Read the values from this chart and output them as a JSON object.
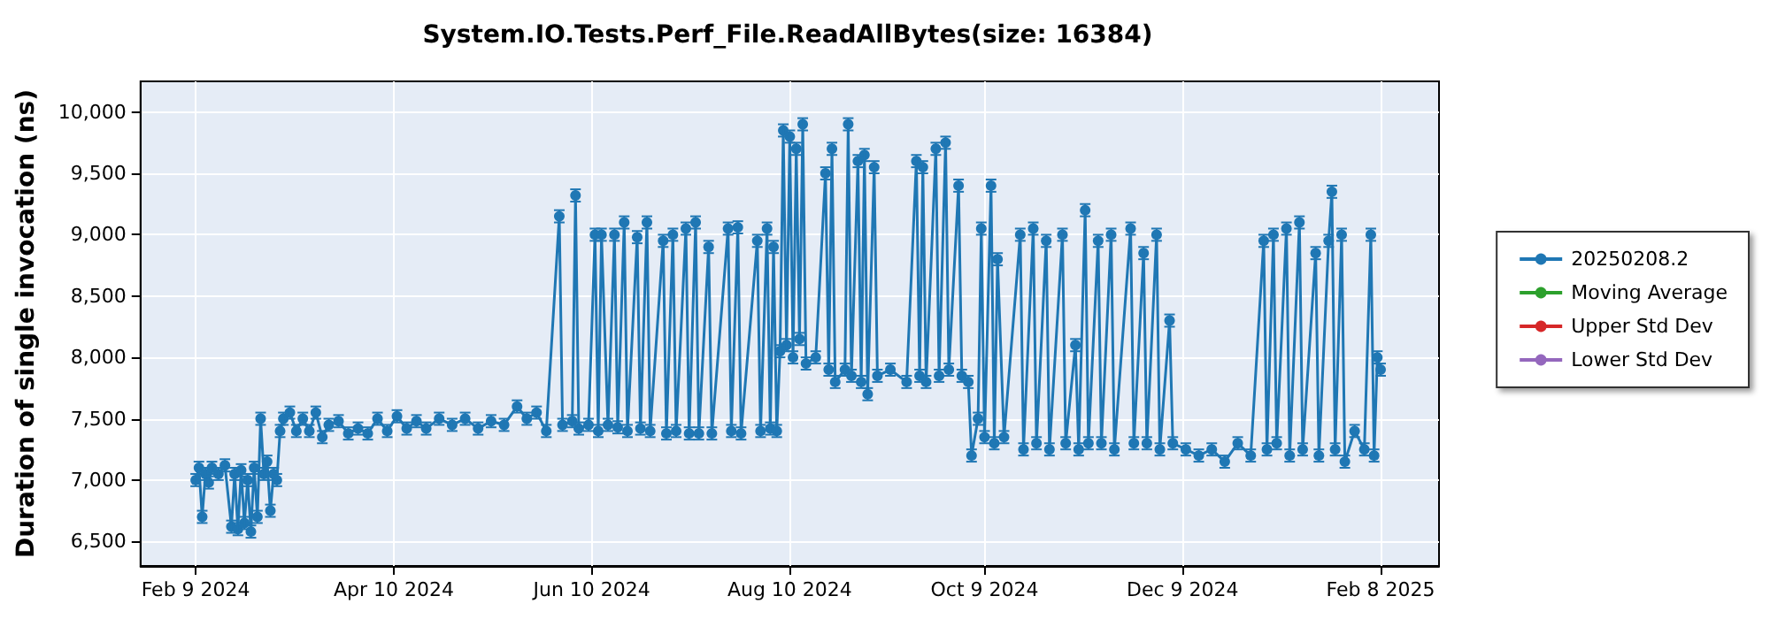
{
  "chart_data": {
    "type": "line",
    "title": "System.IO.Tests.Perf_File.ReadAllBytes(size: 16384)",
    "ylabel": "Duration of single invocation (ns)",
    "xlim": [
      "2024-01-23",
      "2025-02-26"
    ],
    "xticks": [
      {
        "value": "2024-02-09",
        "label": "Feb 9 2024"
      },
      {
        "value": "2024-04-10",
        "label": "Apr 10 2024"
      },
      {
        "value": "2024-06-10",
        "label": "Jun 10 2024"
      },
      {
        "value": "2024-08-10",
        "label": "Aug 10 2024"
      },
      {
        "value": "2024-10-09",
        "label": "Oct 9 2024"
      },
      {
        "value": "2024-12-09",
        "label": "Dec 9 2024"
      },
      {
        "value": "2025-02-08",
        "label": "Feb 8 2025"
      }
    ],
    "ylim": [
      6300,
      10250
    ],
    "yticks": [
      {
        "value": 6500,
        "label": "6,500"
      },
      {
        "value": 7000,
        "label": "7,000"
      },
      {
        "value": 7500,
        "label": "7,500"
      },
      {
        "value": 8000,
        "label": "8,000"
      },
      {
        "value": 8500,
        "label": "8,500"
      },
      {
        "value": 9000,
        "label": "9,000"
      },
      {
        "value": 9500,
        "label": "9,500"
      },
      {
        "value": 10000,
        "label": "10,000"
      }
    ],
    "grid": true,
    "legend": "right",
    "marker": "circle",
    "line_style": "solid",
    "x": [
      "2024-02-09",
      "2024-02-10",
      "2024-02-11",
      "2024-02-12",
      "2024-02-13",
      "2024-02-14",
      "2024-02-16",
      "2024-02-18",
      "2024-02-20",
      "2024-02-21",
      "2024-02-22",
      "2024-02-23",
      "2024-02-24",
      "2024-02-25",
      "2024-02-26",
      "2024-02-27",
      "2024-02-28",
      "2024-02-29",
      "2024-03-01",
      "2024-03-02",
      "2024-03-03",
      "2024-03-04",
      "2024-03-05",
      "2024-03-06",
      "2024-03-07",
      "2024-03-09",
      "2024-03-11",
      "2024-03-13",
      "2024-03-15",
      "2024-03-17",
      "2024-03-19",
      "2024-03-21",
      "2024-03-24",
      "2024-03-27",
      "2024-03-30",
      "2024-04-02",
      "2024-04-05",
      "2024-04-08",
      "2024-04-11",
      "2024-04-14",
      "2024-04-17",
      "2024-04-20",
      "2024-04-24",
      "2024-04-28",
      "2024-05-02",
      "2024-05-06",
      "2024-05-10",
      "2024-05-14",
      "2024-05-18",
      "2024-05-21",
      "2024-05-24",
      "2024-05-27",
      "2024-05-31",
      "2024-06-01",
      "2024-06-04",
      "2024-06-05",
      "2024-06-06",
      "2024-06-09",
      "2024-06-11",
      "2024-06-12",
      "2024-06-13",
      "2024-06-15",
      "2024-06-17",
      "2024-06-18",
      "2024-06-20",
      "2024-06-21",
      "2024-06-24",
      "2024-06-25",
      "2024-06-27",
      "2024-06-28",
      "2024-07-02",
      "2024-07-03",
      "2024-07-05",
      "2024-07-06",
      "2024-07-09",
      "2024-07-10",
      "2024-07-12",
      "2024-07-13",
      "2024-07-16",
      "2024-07-17",
      "2024-07-22",
      "2024-07-23",
      "2024-07-25",
      "2024-07-26",
      "2024-07-31",
      "2024-08-01",
      "2024-08-03",
      "2024-08-04",
      "2024-08-05",
      "2024-08-06",
      "2024-08-07",
      "2024-08-08",
      "2024-08-09",
      "2024-08-10",
      "2024-08-11",
      "2024-08-12",
      "2024-08-13",
      "2024-08-14",
      "2024-08-15",
      "2024-08-18",
      "2024-08-21",
      "2024-08-22",
      "2024-08-23",
      "2024-08-24",
      "2024-08-27",
      "2024-08-28",
      "2024-08-29",
      "2024-08-31",
      "2024-09-01",
      "2024-09-02",
      "2024-09-03",
      "2024-09-05",
      "2024-09-06",
      "2024-09-10",
      "2024-09-15",
      "2024-09-18",
      "2024-09-19",
      "2024-09-20",
      "2024-09-21",
      "2024-09-24",
      "2024-09-25",
      "2024-09-27",
      "2024-09-28",
      "2024-10-01",
      "2024-10-02",
      "2024-10-04",
      "2024-10-05",
      "2024-10-07",
      "2024-10-08",
      "2024-10-09",
      "2024-10-11",
      "2024-10-12",
      "2024-10-13",
      "2024-10-15",
      "2024-10-20",
      "2024-10-21",
      "2024-10-24",
      "2024-10-25",
      "2024-10-28",
      "2024-10-29",
      "2024-11-02",
      "2024-11-03",
      "2024-11-06",
      "2024-11-07",
      "2024-11-09",
      "2024-11-10",
      "2024-11-13",
      "2024-11-14",
      "2024-11-17",
      "2024-11-18",
      "2024-11-23",
      "2024-11-24",
      "2024-11-27",
      "2024-11-28",
      "2024-12-01",
      "2024-12-02",
      "2024-12-05",
      "2024-12-06",
      "2024-12-10",
      "2024-12-14",
      "2024-12-18",
      "2024-12-22",
      "2024-12-26",
      "2024-12-30",
      "2025-01-03",
      "2025-01-04",
      "2025-01-06",
      "2025-01-07",
      "2025-01-10",
      "2025-01-11",
      "2025-01-14",
      "2025-01-15",
      "2025-01-19",
      "2025-01-20",
      "2025-01-23",
      "2025-01-24",
      "2025-01-25",
      "2025-01-27",
      "2025-01-28",
      "2025-01-31",
      "2025-02-03",
      "2025-02-05",
      "2025-02-06",
      "2025-02-07",
      "2025-02-08"
    ],
    "series": [
      {
        "name": "20250208.2",
        "color": "#1f77b4",
        "values": [
          7000,
          7100,
          6700,
          7050,
          6980,
          7100,
          7050,
          7120,
          6620,
          7050,
          6600,
          7080,
          6650,
          7000,
          6580,
          7100,
          6700,
          7500,
          7050,
          7150,
          6750,
          7050,
          7000,
          7400,
          7500,
          7550,
          7400,
          7500,
          7400,
          7550,
          7350,
          7450,
          7480,
          7380,
          7420,
          7380,
          7500,
          7400,
          7520,
          7420,
          7480,
          7420,
          7500,
          7450,
          7500,
          7420,
          7480,
          7450,
          7600,
          7500,
          7550,
          7400,
          9150,
          7450,
          7480,
          9320,
          7420,
          7450,
          9000,
          7400,
          9000,
          7450,
          9000,
          7430,
          9100,
          7400,
          8980,
          7420,
          9100,
          7400,
          8950,
          7380,
          9000,
          7400,
          9050,
          7380,
          9100,
          7380,
          8900,
          7380,
          9050,
          7400,
          9060,
          7380,
          8950,
          7400,
          9050,
          7420,
          8900,
          7400,
          8050,
          9850,
          8100,
          9800,
          8000,
          9700,
          8150,
          9900,
          7950,
          8000,
          9500,
          7900,
          9700,
          7800,
          7900,
          9900,
          7850,
          9600,
          7800,
          9650,
          7700,
          9550,
          7850,
          7900,
          7800,
          9600,
          7850,
          9550,
          7800,
          9700,
          7850,
          9750,
          7900,
          9400,
          7850,
          7800,
          7200,
          7500,
          9050,
          7350,
          9400,
          7300,
          8800,
          7350,
          9000,
          7250,
          9050,
          7300,
          8950,
          7250,
          9000,
          7300,
          8100,
          7250,
          9200,
          7300,
          8950,
          7300,
          9000,
          7250,
          9050,
          7300,
          8850,
          7300,
          9000,
          7250,
          8300,
          7300,
          7250,
          7200,
          7250,
          7150,
          7300,
          7200,
          8950,
          7250,
          9000,
          7300,
          9050,
          7200,
          9100,
          7250,
          8850,
          7200,
          8950,
          9350,
          7250,
          9000,
          7150,
          7400,
          7250,
          9000,
          7200,
          8000,
          7900
        ],
        "errors": [
          50,
          50,
          50,
          50,
          50,
          50,
          50,
          50,
          50,
          50,
          50,
          50,
          50,
          50,
          50,
          50,
          50,
          50,
          50,
          50,
          50,
          50,
          50,
          50,
          50,
          50,
          50,
          50,
          50,
          50,
          50,
          50,
          50,
          50,
          50,
          50,
          50,
          50,
          50,
          50,
          50,
          50,
          50,
          50,
          50,
          50,
          50,
          50,
          50,
          50,
          50,
          50,
          50,
          50,
          50,
          50,
          50,
          50,
          50,
          50,
          50,
          50,
          50,
          50,
          50,
          50,
          50,
          50,
          50,
          50,
          50,
          50,
          50,
          50,
          50,
          50,
          50,
          50,
          50,
          50,
          50,
          50,
          50,
          50,
          50,
          50,
          50,
          50,
          50,
          50,
          50,
          50,
          50,
          50,
          50,
          50,
          50,
          50,
          50,
          50,
          50,
          50,
          50,
          50,
          50,
          50,
          50,
          50,
          50,
          50,
          50,
          50,
          50,
          50,
          50,
          50,
          50,
          50,
          50,
          50,
          50,
          50,
          50,
          50,
          50,
          50,
          50,
          50,
          50,
          50,
          50,
          50,
          50,
          50,
          50,
          50,
          50,
          50,
          50,
          50,
          50,
          50,
          50,
          50,
          50,
          50,
          50,
          50,
          50,
          50,
          50,
          50,
          50,
          50,
          50,
          50,
          50,
          50,
          50,
          50,
          50,
          50,
          50,
          50,
          50,
          50,
          50,
          50,
          50,
          50,
          50,
          50,
          50,
          50,
          50,
          50,
          50,
          50,
          50,
          50,
          50,
          50,
          50,
          50,
          50
        ]
      },
      {
        "name": "Moving Average",
        "color": "#2ca02c",
        "values": [
          null,
          null,
          null,
          null,
          null,
          null,
          null,
          null,
          null,
          null,
          null,
          null,
          null,
          null,
          null,
          null,
          null,
          null,
          null,
          null,
          null,
          null,
          null,
          null,
          null,
          null,
          null,
          null,
          null,
          null,
          null,
          null,
          null,
          null,
          null,
          null,
          null,
          null,
          null,
          null,
          null,
          null,
          null,
          null,
          null,
          null,
          null,
          null,
          null,
          null,
          null,
          null,
          null,
          null,
          null,
          null,
          null,
          null,
          null,
          null,
          null,
          null,
          null,
          null,
          null,
          null,
          null,
          null,
          null,
          null,
          null,
          null,
          null,
          null,
          null,
          null,
          null,
          null,
          null,
          null,
          null,
          null,
          null,
          null,
          null,
          null,
          null,
          null,
          null,
          null,
          null,
          null,
          null,
          null,
          null,
          null,
          null,
          null,
          null,
          null,
          null,
          null,
          null,
          null,
          null,
          null,
          null,
          null,
          null,
          null,
          null,
          null,
          null,
          null,
          null,
          null,
          null,
          null,
          null,
          null,
          null,
          null,
          null,
          null,
          null,
          null,
          null,
          null,
          null,
          null,
          null,
          null,
          null,
          null,
          null,
          null,
          null,
          null,
          null,
          null,
          null,
          null,
          null,
          null,
          null,
          null,
          null,
          null,
          null,
          null,
          null,
          null,
          null,
          null,
          null,
          null,
          null,
          null,
          null,
          null,
          null,
          null,
          null,
          null,
          null,
          null,
          null,
          null,
          null,
          null,
          null,
          null,
          null,
          null,
          null,
          null,
          null,
          null,
          null,
          null,
          null,
          null,
          null,
          null,
          null
        ]
      },
      {
        "name": "Upper Std Dev",
        "color": "#d62728",
        "values": [
          null,
          null,
          null,
          null,
          null,
          null,
          null,
          null,
          null,
          null,
          null,
          null,
          null,
          null,
          null,
          null,
          null,
          null,
          null,
          null,
          null,
          null,
          null,
          null,
          null,
          null,
          null,
          null,
          null,
          null,
          null,
          null,
          null,
          null,
          null,
          null,
          null,
          null,
          null,
          null,
          null,
          null,
          null,
          null,
          null,
          null,
          null,
          null,
          null,
          null,
          null,
          null,
          null,
          null,
          null,
          null,
          null,
          null,
          null,
          null,
          null,
          null,
          null,
          null,
          null,
          null,
          null,
          null,
          null,
          null,
          null,
          null,
          null,
          null,
          null,
          null,
          null,
          null,
          null,
          null,
          null,
          null,
          null,
          null,
          null,
          null,
          null,
          null,
          null,
          null,
          null,
          null,
          null,
          null,
          null,
          null,
          null,
          null,
          null,
          null,
          null,
          null,
          null,
          null,
          null,
          null,
          null,
          null,
          null,
          null,
          null,
          null,
          null,
          null,
          null,
          null,
          null,
          null,
          null,
          null,
          null,
          null,
          null,
          null,
          null,
          null,
          null,
          null,
          null,
          null,
          null,
          null,
          null,
          null,
          null,
          null,
          null,
          null,
          null,
          null,
          null,
          null,
          null,
          null,
          null,
          null,
          null,
          null,
          null,
          null,
          null,
          null,
          null,
          null,
          null,
          null,
          null,
          null,
          null,
          null,
          null,
          null,
          null,
          null,
          null,
          null,
          null,
          null,
          null,
          null,
          null,
          null,
          null,
          null,
          null,
          null,
          null,
          null,
          null,
          null,
          null,
          null,
          null,
          null,
          null
        ]
      },
      {
        "name": "Lower Std Dev",
        "color": "#9467bd",
        "values": [
          null,
          null,
          null,
          null,
          null,
          null,
          null,
          null,
          null,
          null,
          null,
          null,
          null,
          null,
          null,
          null,
          null,
          null,
          null,
          null,
          null,
          null,
          null,
          null,
          null,
          null,
          null,
          null,
          null,
          null,
          null,
          null,
          null,
          null,
          null,
          null,
          null,
          null,
          null,
          null,
          null,
          null,
          null,
          null,
          null,
          null,
          null,
          null,
          null,
          null,
          null,
          null,
          null,
          null,
          null,
          null,
          null,
          null,
          null,
          null,
          null,
          null,
          null,
          null,
          null,
          null,
          null,
          null,
          null,
          null,
          null,
          null,
          null,
          null,
          null,
          null,
          null,
          null,
          null,
          null,
          null,
          null,
          null,
          null,
          null,
          null,
          null,
          null,
          null,
          null,
          null,
          null,
          null,
          null,
          null,
          null,
          null,
          null,
          null,
          null,
          null,
          null,
          null,
          null,
          null,
          null,
          null,
          null,
          null,
          null,
          null,
          null,
          null,
          null,
          null,
          null,
          null,
          null,
          null,
          null,
          null,
          null,
          null,
          null,
          null,
          null,
          null,
          null,
          null,
          null,
          null,
          null,
          null,
          null,
          null,
          null,
          null,
          null,
          null,
          null,
          null,
          null,
          null,
          null,
          null,
          null,
          null,
          null,
          null,
          null,
          null,
          null,
          null,
          null,
          null,
          null,
          null,
          null,
          null,
          null,
          null,
          null,
          null,
          null,
          null,
          null,
          null,
          null,
          null,
          null,
          null,
          null,
          null,
          null,
          null,
          null,
          null,
          null,
          null,
          null,
          null,
          null,
          null,
          null,
          null
        ]
      }
    ]
  }
}
